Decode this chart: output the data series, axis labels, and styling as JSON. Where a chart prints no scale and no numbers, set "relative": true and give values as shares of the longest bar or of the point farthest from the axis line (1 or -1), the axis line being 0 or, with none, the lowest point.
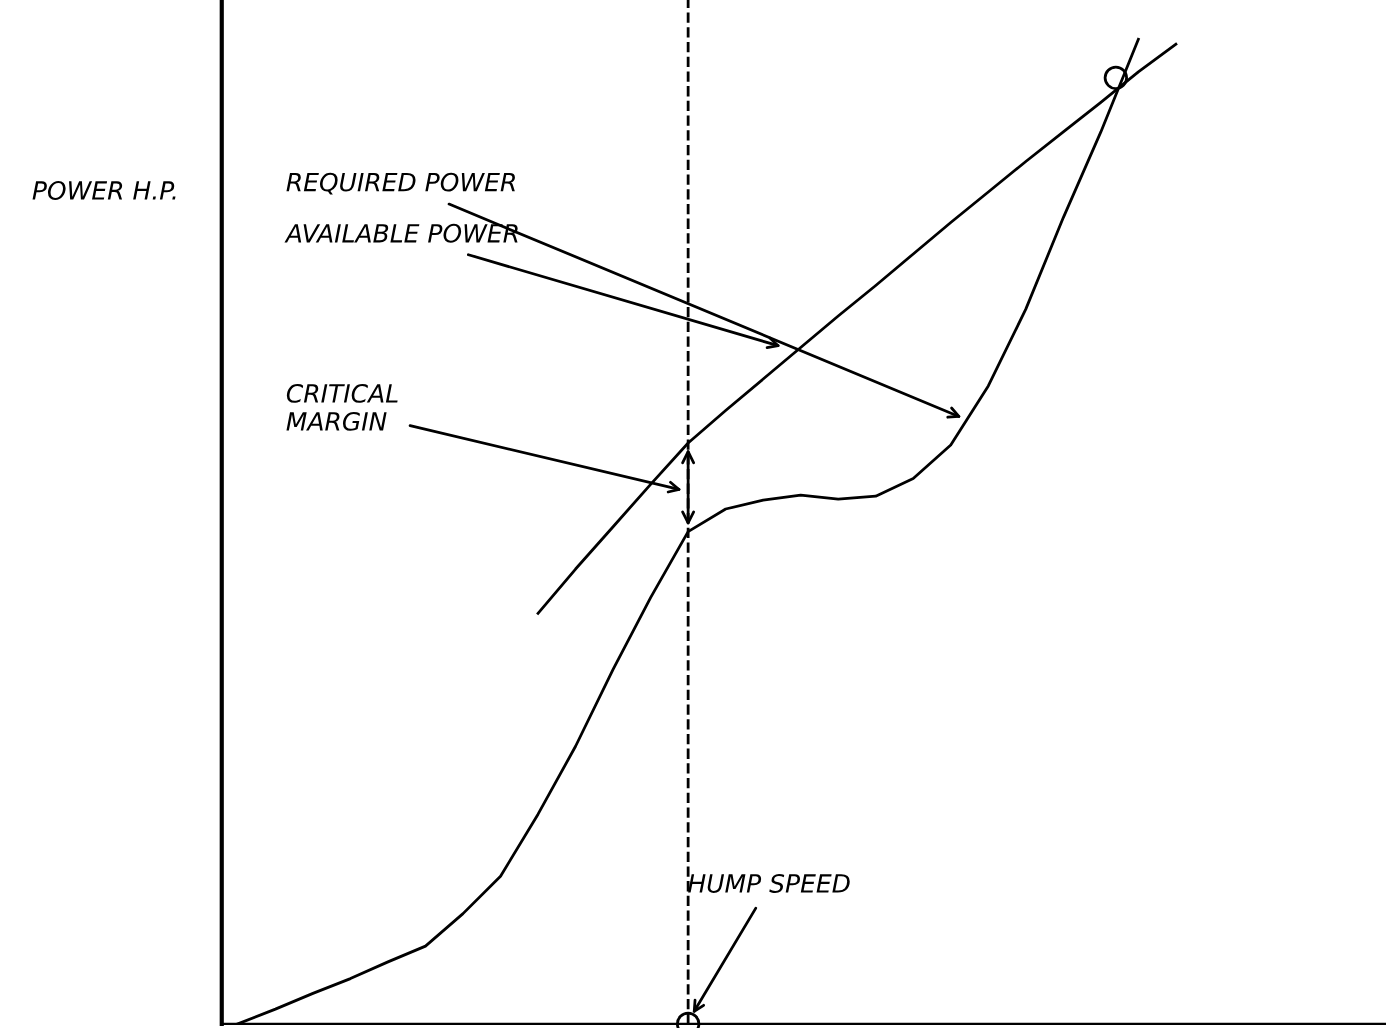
{
  "chart_data": {
    "type": "line",
    "relative": true,
    "ylabel": "POWER H.P.",
    "line_style": "solid",
    "categories": [
      null,
      null,
      null,
      null,
      null,
      null,
      null,
      null,
      null,
      null,
      null,
      null,
      null,
      null,
      null,
      null,
      null,
      null,
      null,
      null,
      null,
      null,
      null,
      null,
      null,
      null,
      null,
      null,
      null,
      null,
      null
    ],
    "series": [
      {
        "color": "#000000",
        "values": [
          0,
          0.015,
          0.031,
          0.046,
          0.063,
          0.079,
          0.112,
          0.15,
          0.213,
          0.282,
          0.36,
          0.433,
          0.5,
          0.523,
          0.532,
          0.537,
          0.533,
          0.536,
          0.554,
          0.588,
          0.648,
          0.726,
          0.819,
          0.906,
          1.0,
          null,
          null,
          null,
          null,
          null,
          null
        ]
      },
      {
        "color": "#000000",
        "values": [
          null,
          null,
          null,
          null,
          null,
          null,
          null,
          null,
          0.417,
          0.462,
          0.505,
          0.548,
          0.59,
          0.623,
          0.655,
          0.687,
          0.719,
          0.75,
          0.782,
          0.814,
          0.845,
          0.876,
          0.906,
          0.936,
          0.967,
          0.995,
          null,
          null,
          null,
          null,
          null
        ]
      }
    ],
    "annotations": [
      "REQUIRED POWER",
      "AVAILABLE POWER",
      "CRITICAL\nMARGIN",
      "HUMP SPEED"
    ]
  }
}
